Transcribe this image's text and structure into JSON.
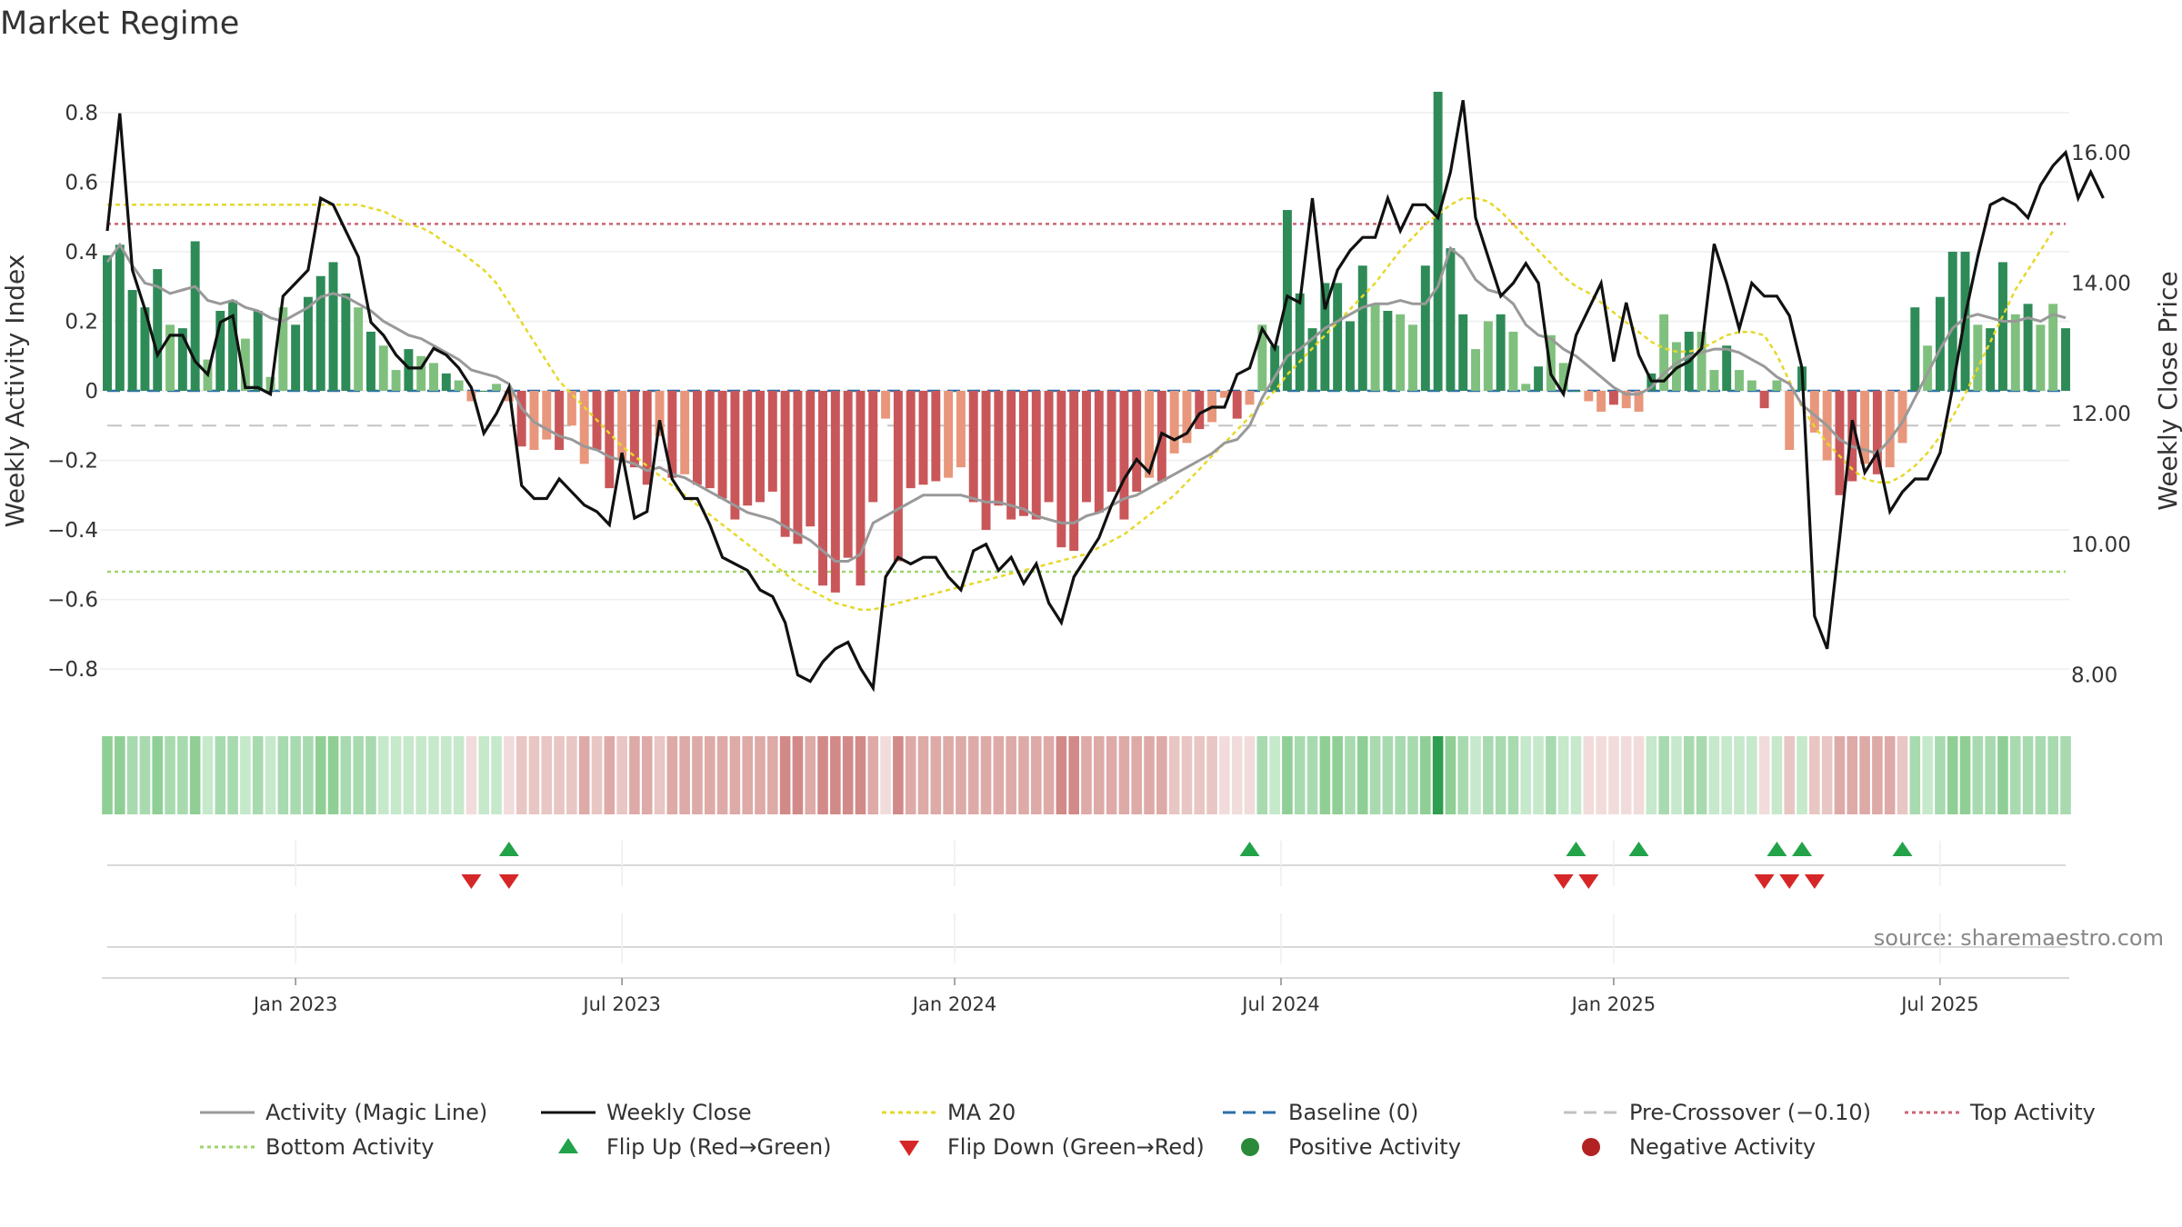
{
  "title": "Market Regime",
  "source": "source: sharemaestro.com",
  "legend": [
    {
      "label": "Activity (Magic Line)",
      "kind": "line",
      "color": "#999999",
      "dash": ""
    },
    {
      "label": "Weekly Close",
      "kind": "line",
      "color": "#111111",
      "dash": ""
    },
    {
      "label": "MA 20",
      "kind": "line",
      "color": "#e6d82a",
      "dash": "5,4"
    },
    {
      "label": "Baseline (0)",
      "kind": "line",
      "color": "#2c6fa8",
      "dash": "14,8"
    },
    {
      "label": "Pre-Crossover (−0.10)",
      "kind": "line",
      "color": "#c0c0c0",
      "dash": "14,8"
    },
    {
      "label": "Top Activity",
      "kind": "line",
      "color": "#cc6677",
      "dash": "4,4"
    },
    {
      "label": "Bottom Activity",
      "kind": "line",
      "color": "#9ed36a",
      "dash": "4,4"
    },
    {
      "label": "Flip Up (Red→Green)",
      "kind": "tri-up",
      "color": "#22a34a"
    },
    {
      "label": "Flip Down (Green→Red)",
      "kind": "tri-down",
      "color": "#d62728"
    },
    {
      "label": "Positive Activity",
      "kind": "dot",
      "color": "#2a8a3a"
    },
    {
      "label": "Negative Activity",
      "kind": "dot",
      "color": "#b22222"
    }
  ],
  "chart_data": {
    "type": "bar",
    "xlabel": "",
    "ylabel": "Weekly Activity Index",
    "y2label": "Weekly Close Price",
    "ylim": [
      -0.92,
      0.92
    ],
    "y2lim": [
      7.45,
      17.25
    ],
    "yticks": [
      0.8,
      0.6,
      0.4,
      0.2,
      0,
      -0.2,
      -0.4,
      -0.6,
      -0.8
    ],
    "ytick_labels": [
      "0.8",
      "0.6",
      "0.4",
      "0.2",
      "0",
      "−0.2",
      "−0.4",
      "−0.6",
      "−0.8"
    ],
    "y2ticks": [
      16,
      14,
      12,
      10,
      8
    ],
    "y2tick_labels": [
      "16.00",
      "14.00",
      "12.00",
      "10.00",
      "8.00"
    ],
    "xticks": [
      {
        "label": "Jan 2023",
        "week": 15
      },
      {
        "label": "Jul 2023",
        "week": 41
      },
      {
        "label": "Jan 2024",
        "week": 67.5
      },
      {
        "label": "Jul 2024",
        "week": 93.5
      },
      {
        "label": "Jan 2025",
        "week": 120
      },
      {
        "label": "Jul 2025",
        "week": 146
      }
    ],
    "reference_lines": {
      "baseline": 0,
      "pre_crossover": -0.1,
      "top_activity": 0.48,
      "bottom_activity": -0.52
    },
    "grid": true,
    "legend_position": "bottom",
    "activity": [
      0.39,
      0.42,
      0.29,
      0.24,
      0.35,
      0.19,
      0.18,
      0.43,
      0.09,
      0.23,
      0.26,
      0.15,
      0.23,
      0.04,
      0.24,
      0.19,
      0.27,
      0.33,
      0.37,
      0.28,
      0.24,
      0.17,
      0.13,
      0.06,
      0.12,
      0.1,
      0.08,
      0.05,
      0.03,
      -0.03,
      0,
      0.02,
      -0.03,
      -0.16,
      -0.17,
      -0.14,
      -0.17,
      -0.1,
      -0.21,
      -0.17,
      -0.28,
      -0.2,
      -0.22,
      -0.27,
      -0.13,
      -0.25,
      -0.24,
      -0.27,
      -0.28,
      -0.31,
      -0.37,
      -0.33,
      -0.32,
      -0.29,
      -0.42,
      -0.44,
      -0.39,
      -0.56,
      -0.58,
      -0.48,
      -0.56,
      -0.32,
      -0.08,
      -0.49,
      -0.28,
      -0.27,
      -0.26,
      -0.25,
      -0.22,
      -0.32,
      -0.4,
      -0.33,
      -0.37,
      -0.36,
      -0.37,
      -0.32,
      -0.45,
      -0.46,
      -0.32,
      -0.35,
      -0.29,
      -0.37,
      -0.29,
      -0.25,
      -0.26,
      -0.18,
      -0.15,
      -0.11,
      -0.09,
      -0.02,
      -0.08,
      -0.04,
      0.19,
      0.13,
      0.52,
      0.28,
      0.18,
      0.31,
      0.31,
      0.2,
      0.36,
      0.25,
      0.23,
      0.22,
      0.19,
      0.36,
      0.86,
      0.41,
      0.22,
      0.12,
      0.2,
      0.22,
      0.17,
      0.02,
      0.07,
      0.16,
      0.08,
      0,
      -0.03,
      -0.06,
      -0.04,
      -0.05,
      -0.06,
      0.05,
      0.22,
      0.14,
      0.17,
      0.17,
      0.06,
      0.13,
      0.06,
      0.03,
      -0.05,
      0.03,
      -0.17,
      0.07,
      -0.12,
      -0.2,
      -0.3,
      -0.26,
      -0.21,
      -0.24,
      -0.22,
      -0.15,
      0.24,
      0.13,
      0.27,
      0.4,
      0.4,
      0.19,
      0.18,
      0.37,
      0.22,
      0.25,
      0.19,
      0.25,
      0.18
    ],
    "activity_line": [
      0.37,
      0.42,
      0.36,
      0.31,
      0.3,
      0.28,
      0.29,
      0.3,
      0.26,
      0.25,
      0.26,
      0.24,
      0.23,
      0.21,
      0.2,
      0.22,
      0.24,
      0.27,
      0.28,
      0.27,
      0.25,
      0.23,
      0.2,
      0.18,
      0.16,
      0.15,
      0.13,
      0.11,
      0.09,
      0.06,
      0.05,
      0.04,
      0.02,
      -0.05,
      -0.09,
      -0.11,
      -0.13,
      -0.14,
      -0.16,
      -0.17,
      -0.19,
      -0.2,
      -0.21,
      -0.23,
      -0.22,
      -0.24,
      -0.25,
      -0.27,
      -0.29,
      -0.31,
      -0.33,
      -0.35,
      -0.36,
      -0.37,
      -0.39,
      -0.41,
      -0.43,
      -0.46,
      -0.49,
      -0.49,
      -0.47,
      -0.38,
      -0.36,
      -0.34,
      -0.32,
      -0.3,
      -0.3,
      -0.3,
      -0.3,
      -0.31,
      -0.32,
      -0.32,
      -0.33,
      -0.34,
      -0.36,
      -0.37,
      -0.38,
      -0.38,
      -0.36,
      -0.35,
      -0.33,
      -0.31,
      -0.3,
      -0.28,
      -0.26,
      -0.24,
      -0.22,
      -0.2,
      -0.18,
      -0.15,
      -0.14,
      -0.1,
      -0.02,
      0.04,
      0.1,
      0.12,
      0.15,
      0.18,
      0.2,
      0.22,
      0.24,
      0.25,
      0.25,
      0.26,
      0.25,
      0.25,
      0.3,
      0.41,
      0.38,
      0.32,
      0.29,
      0.28,
      0.25,
      0.19,
      0.16,
      0.15,
      0.12,
      0.1,
      0.07,
      0.04,
      0.01,
      -0.01,
      -0.01,
      0.01,
      0.05,
      0.08,
      0.1,
      0.11,
      0.12,
      0.12,
      0.11,
      0.09,
      0.07,
      0.04,
      0.02,
      -0.04,
      -0.07,
      -0.1,
      -0.14,
      -0.16,
      -0.17,
      -0.18,
      -0.14,
      -0.09,
      -0.02,
      0.05,
      0.12,
      0.18,
      0.21,
      0.22,
      0.21,
      0.2,
      0.2,
      0.21,
      0.2,
      0.22,
      0.21
    ],
    "weekly_close": [
      14.8,
      16.6,
      14.2,
      13.6,
      12.9,
      13.2,
      13.2,
      12.8,
      12.6,
      13.4,
      13.5,
      12.4,
      12.4,
      12.3,
      13.8,
      14.0,
      14.2,
      15.3,
      15.2,
      14.8,
      14.4,
      13.4,
      13.2,
      12.9,
      12.7,
      12.7,
      13.0,
      12.9,
      12.7,
      12.4,
      11.7,
      12.0,
      12.4,
      10.9,
      10.7,
      10.7,
      11.0,
      10.8,
      10.6,
      10.5,
      10.3,
      11.4,
      10.4,
      10.5,
      11.9,
      11.0,
      10.7,
      10.7,
      10.3,
      9.8,
      9.7,
      9.6,
      9.3,
      9.2,
      8.8,
      8.0,
      7.9,
      8.2,
      8.4,
      8.5,
      8.1,
      7.8,
      9.5,
      9.8,
      9.7,
      9.8,
      9.8,
      9.5,
      9.3,
      9.9,
      10.0,
      9.6,
      9.8,
      9.4,
      9.7,
      9.1,
      8.8,
      9.5,
      9.8,
      10.1,
      10.6,
      11.0,
      11.3,
      11.1,
      11.7,
      11.6,
      11.7,
      12.0,
      12.1,
      12.1,
      12.6,
      12.7,
      13.3,
      13.0,
      13.8,
      13.7,
      15.3,
      13.6,
      14.2,
      14.5,
      14.7,
      14.7,
      15.3,
      14.8,
      15.2,
      15.2,
      15.0,
      15.7,
      16.8,
      15.0,
      14.4,
      13.8,
      14.0,
      14.3,
      14.0,
      12.6,
      12.3,
      13.2,
      13.6,
      14.0,
      12.8,
      13.7,
      12.9,
      12.5,
      12.5,
      12.7,
      12.8,
      13.0,
      14.6,
      14.0,
      13.3,
      14.0,
      13.8,
      13.8,
      13.5,
      12.7,
      8.9,
      8.4,
      10.1,
      11.9,
      11.1,
      11.4,
      10.5,
      10.8,
      11.0,
      11.0,
      11.4,
      12.4,
      13.5,
      14.4,
      15.2,
      15.3,
      15.2,
      15.0,
      15.5,
      15.8,
      16.0,
      15.3,
      15.7,
      15.3
    ],
    "ma20": [
      15.2,
      15.2,
      15.2,
      15.2,
      15.2,
      15.2,
      15.2,
      15.2,
      15.2,
      15.2,
      15.2,
      15.2,
      15.2,
      15.2,
      15.2,
      15.2,
      15.2,
      15.2,
      15.2,
      15.2,
      15.2,
      15.15,
      15.1,
      15.0,
      14.9,
      14.85,
      14.75,
      14.6,
      14.5,
      14.35,
      14.2,
      14.0,
      13.7,
      13.4,
      13.1,
      12.8,
      12.5,
      12.3,
      12.1,
      11.9,
      11.7,
      11.5,
      11.35,
      11.2,
      11.05,
      10.9,
      10.75,
      10.6,
      10.45,
      10.3,
      10.15,
      10.0,
      9.85,
      9.7,
      9.55,
      9.4,
      9.3,
      9.2,
      9.1,
      9.05,
      9.0,
      9.0,
      9.05,
      9.1,
      9.15,
      9.2,
      9.25,
      9.3,
      9.35,
      9.4,
      9.45,
      9.5,
      9.55,
      9.6,
      9.65,
      9.7,
      9.75,
      9.8,
      9.85,
      9.95,
      10.05,
      10.15,
      10.3,
      10.45,
      10.6,
      10.75,
      10.95,
      11.15,
      11.35,
      11.55,
      11.75,
      11.95,
      12.15,
      12.35,
      12.6,
      12.8,
      13.0,
      13.2,
      13.4,
      13.6,
      13.8,
      14.0,
      14.25,
      14.5,
      14.7,
      14.9,
      15.05,
      15.2,
      15.3,
      15.3,
      15.25,
      15.1,
      14.9,
      14.7,
      14.5,
      14.3,
      14.1,
      13.95,
      13.85,
      13.7,
      13.55,
      13.4,
      13.25,
      13.1,
      13.0,
      12.95,
      12.95,
      13.0,
      13.1,
      13.2,
      13.25,
      13.25,
      13.2,
      12.9,
      12.5,
      12.1,
      11.8,
      11.55,
      11.35,
      11.15,
      11.0,
      10.95,
      10.95,
      11.05,
      11.2,
      11.4,
      11.65,
      11.95,
      12.3,
      12.7,
      13.1,
      13.5,
      13.9,
      14.2,
      14.5,
      14.8
    ],
    "flip_up_weeks": [
      32,
      91,
      117,
      122,
      133,
      135,
      143
    ],
    "flip_down_weeks": [
      29,
      32,
      116,
      118,
      132,
      134,
      136
    ]
  }
}
